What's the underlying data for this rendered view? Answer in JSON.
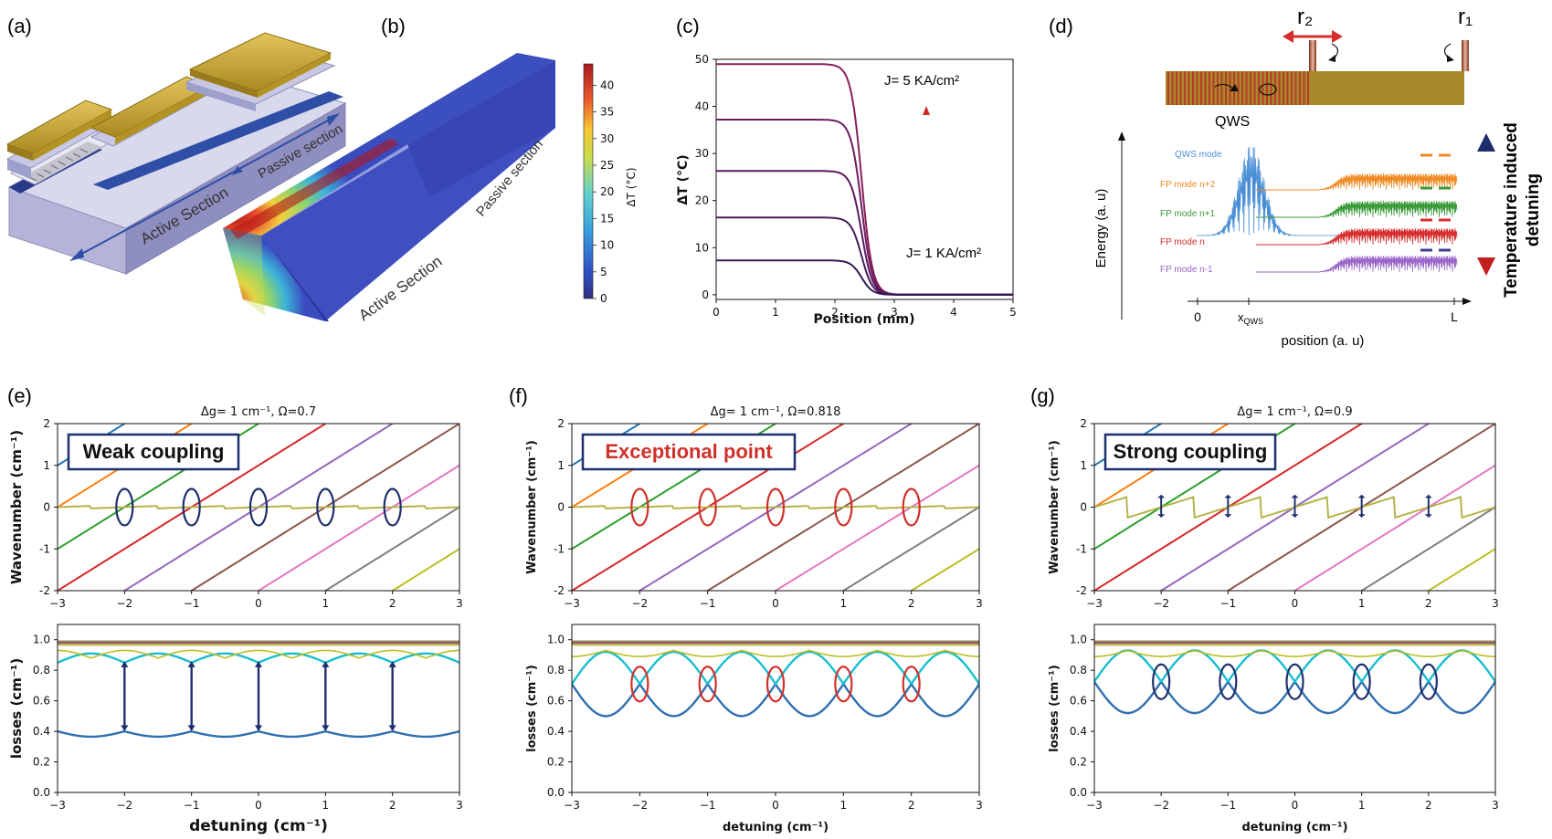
{
  "panel_letters": [
    "(a)",
    "(b)",
    "(c)",
    "(d)",
    "(e)",
    "(f)",
    "(g)"
  ],
  "panel_a": {
    "label_active": "Active Section",
    "label_passive": "Passive section"
  },
  "panel_b": {
    "label_active": "Active Section",
    "label_passive": "Passive section",
    "colorbar_label": "ΔT (°C)",
    "colorbar_ticks": [
      0,
      5,
      10,
      15,
      20,
      25,
      30,
      35,
      40
    ],
    "colorbar_max": 44,
    "colors": {
      "low": "#2a2f9e",
      "mid": "#35b7d8",
      "high": "#c61a1a"
    }
  },
  "panel_d": {
    "r2_label": "r₂",
    "r1_label": "r₁",
    "qws_label": "QWS",
    "ylabel": "Energy (a. u)",
    "xlabel": "position (a. u)",
    "x_ticks": [
      "0",
      "x_QWS",
      "L"
    ],
    "x_tick_main": "x",
    "x_tick_sub": "QWS",
    "right_label_line1": "Temperature induced",
    "right_label_line2": "detuning",
    "modes": [
      {
        "name": "QWS mode",
        "color": "#4a8fd6"
      },
      {
        "name": "FP mode n+2",
        "color": "#f08a24"
      },
      {
        "name": "FP mode n+1",
        "color": "#3a9a3a"
      },
      {
        "name": "FP mode n",
        "color": "#d62d2d"
      },
      {
        "name": "FP mode n-1",
        "color": "#9a66c8"
      }
    ]
  },
  "chart_data": [
    {
      "id": "c",
      "type": "line",
      "xlabel": "Position (mm)",
      "ylabel": "ΔT (°C)",
      "xlim": [
        0,
        5
      ],
      "ylim": [
        -1,
        50
      ],
      "xticks": [
        0,
        1,
        2,
        3,
        4,
        5
      ],
      "yticks": [
        0,
        10,
        20,
        30,
        40,
        50
      ],
      "annotation_top": "J= 5 KA/cm²",
      "annotation_bottom": "J= 1 KA/cm²",
      "transition_mm": 2.45,
      "floor": 0,
      "series": [
        {
          "plateau": 49,
          "color": "#8b1f5a"
        },
        {
          "plateau": 37.2,
          "color": "#6e1c5c"
        },
        {
          "plateau": 26.3,
          "color": "#5a1a5e"
        },
        {
          "plateau": 16.4,
          "color": "#471a5c"
        },
        {
          "plateau": 7.3,
          "color": "#341a56"
        }
      ]
    },
    {
      "id": "e",
      "type": "line",
      "title": "Δg= 1 cm⁻¹, Ω=0.7",
      "box_label": "Weak coupling",
      "box_color": "#111111",
      "marker_color": "#1f2f6e",
      "omega": 0.7,
      "crossings": [
        -2,
        -1,
        0,
        1,
        2
      ],
      "xlim": [
        -3,
        3
      ],
      "xticks": [
        -3,
        -2,
        -1,
        0,
        1,
        2,
        3
      ],
      "top": {
        "ylabel": "Wavenumber (cm⁻¹)",
        "ylim": [
          -2,
          2
        ],
        "yticks": [
          -2,
          -1,
          0,
          1,
          2
        ]
      },
      "bottom": {
        "ylabel": "losses (cm⁻¹)",
        "xlabel": "detuning (cm⁻¹)",
        "ylim": [
          0,
          1.1
        ],
        "yticks": [
          0.0,
          0.2,
          0.4,
          0.6,
          0.8,
          1.0
        ],
        "lower_branch": 0.38,
        "upper_branch": 0.9
      }
    },
    {
      "id": "f",
      "type": "line",
      "title": "Δg= 1 cm⁻¹, Ω=0.818",
      "box_label": "Exceptional point",
      "box_color": "#d0302a",
      "marker_color": "#d0302a",
      "omega": 0.818,
      "crossings": [
        -2,
        -1,
        0,
        1,
        2
      ],
      "xlim": [
        -3,
        3
      ],
      "xticks": [
        -3,
        -2,
        -1,
        0,
        1,
        2,
        3
      ],
      "top": {
        "ylabel": "Wavenumber (cm⁻¹)",
        "ylim": [
          -2,
          2
        ],
        "yticks": [
          -2,
          -1,
          0,
          1,
          2
        ]
      },
      "bottom": {
        "ylabel": "losses (cm⁻¹)",
        "xlabel": "detuning (cm⁻¹)",
        "ylim": [
          0,
          1.1
        ],
        "yticks": [
          0.0,
          0.2,
          0.4,
          0.6,
          0.8,
          1.0
        ],
        "lower_branch": 0.5,
        "upper_branch": 0.92
      }
    },
    {
      "id": "g",
      "type": "line",
      "title": "Δg= 1 cm⁻¹, Ω=0.9",
      "box_label": "Strong coupling",
      "box_color": "#111111",
      "marker_color": "#1f2f6e",
      "omega": 0.9,
      "crossings": [
        -2,
        -1,
        0,
        1,
        2
      ],
      "xlim": [
        -3,
        3
      ],
      "xticks": [
        -3,
        -2,
        -1,
        0,
        1,
        2,
        3
      ],
      "top": {
        "ylabel": "Wavenumber (cm⁻¹)",
        "ylim": [
          -2,
          2
        ],
        "yticks": [
          -2,
          -1,
          0,
          1,
          2
        ]
      },
      "bottom": {
        "ylabel": "losses (cm⁻¹)",
        "xlabel": "detuning (cm⁻¹)",
        "ylim": [
          0,
          1.1
        ],
        "yticks": [
          0.0,
          0.2,
          0.4,
          0.6,
          0.8,
          1.0
        ],
        "lower_branch": 0.52,
        "upper_branch": 0.93
      }
    }
  ],
  "line_colors": [
    "#1f77b4",
    "#ff7f0e",
    "#2ca02c",
    "#d62728",
    "#9467bd",
    "#8c564b",
    "#e377c2",
    "#7f7f7f",
    "#bcbd22",
    "#17becf"
  ]
}
